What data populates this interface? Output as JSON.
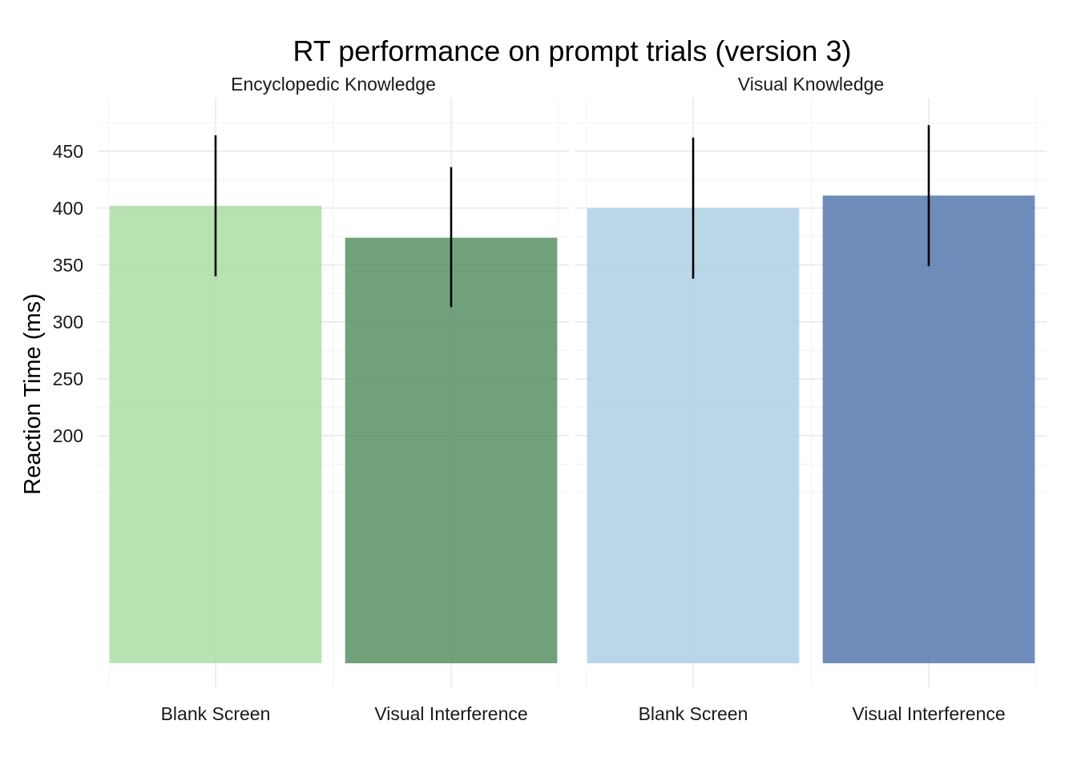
{
  "chart_data": {
    "type": "bar",
    "title": "RT performance on prompt trials (version 3)",
    "xlabel": "",
    "ylabel": "Reaction Time (ms)",
    "yticks": [
      200,
      250,
      300,
      350,
      400,
      450
    ],
    "ylim_visible": [
      0,
      480
    ],
    "grid": true,
    "legend": "none",
    "panels": [
      {
        "label": "Encyclopedic Knowledge",
        "categories": [
          "Blank Screen",
          "Visual Interference"
        ],
        "values": [
          402,
          374
        ],
        "error_low": [
          340,
          313
        ],
        "error_high": [
          464,
          436
        ],
        "colors": [
          "#a8dba0",
          "#4d8a5a"
        ]
      },
      {
        "label": "Visual Knowledge",
        "categories": [
          "Blank Screen",
          "Visual Interference"
        ],
        "values": [
          400,
          411
        ],
        "error_low": [
          338,
          349
        ],
        "error_high": [
          462,
          473
        ],
        "colors": [
          "#a9cde3",
          "#4b6fa9"
        ]
      }
    ]
  }
}
